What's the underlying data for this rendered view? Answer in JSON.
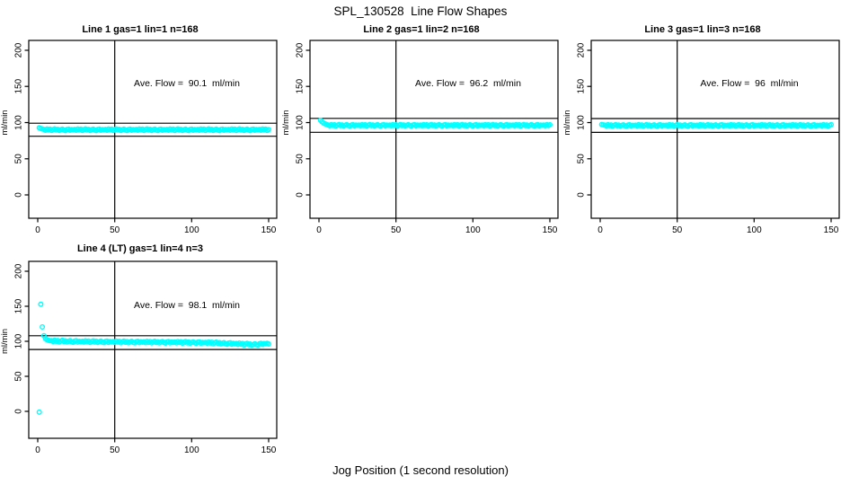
{
  "page": {
    "title": "SPL_130528  Line Flow Shapes",
    "x_axis_label": "Jog Position (1 second resolution)"
  },
  "colors": {
    "points": "#00FFFF",
    "axis": "#000000",
    "background": "#FFFFFF",
    "text": "#000000"
  },
  "chart_data": {
    "type": "scatter",
    "marker": "open-circle",
    "xlabel": "Jog Position (1 second resolution)",
    "ylabel": "ml/min",
    "x_ticks": [
      0,
      50,
      100,
      150
    ],
    "y_ticks": [
      0,
      50,
      100,
      150,
      200
    ],
    "xlim": [
      -6,
      156
    ],
    "ylim": [
      -35,
      215
    ],
    "grid": false,
    "legend": "none",
    "plots": [
      {
        "title": "Line 1 gas=1 lin=1 n=168",
        "annotation": "Ave. Flow =  90.1  ml/min",
        "avg_flow": 90.1,
        "units": "ml/min",
        "n": 168,
        "gas": 1,
        "lin": 1,
        "ref_line_upper": 99.1,
        "ref_line_lower": 81.1,
        "vline_x": 50,
        "x_start": 1,
        "x_step": 1,
        "y": [
          92.8,
          91.9,
          91.2,
          90.5,
          89.5,
          91.2,
          89.9,
          90.9,
          89.1,
          90.3,
          91.3,
          89.7,
          90.7,
          89.2,
          90.2,
          91.0,
          89.8,
          89.0,
          90.6,
          91.1,
          89.4,
          90.4,
          90.0,
          90.5,
          89.5,
          91.2,
          89.9,
          90.9,
          89.1,
          90.3,
          91.3,
          89.7,
          90.7,
          89.2,
          90.2,
          91.0,
          89.8,
          89.0,
          90.6,
          91.1,
          89.4,
          90.4,
          90.0,
          90.5,
          89.5,
          91.2,
          89.9,
          90.9,
          89.1,
          90.3,
          91.3,
          89.7,
          90.7,
          89.2,
          90.2,
          91.0,
          89.8,
          89.0,
          90.6,
          91.1,
          89.4,
          90.4,
          90.0,
          90.5,
          89.5,
          91.2,
          89.9,
          90.9,
          89.1,
          90.3,
          91.3,
          89.7,
          90.7,
          89.2,
          90.2,
          91.0,
          89.8,
          89.0,
          90.6,
          91.1,
          89.4,
          90.4,
          90.0,
          90.5,
          89.5,
          91.2,
          89.9,
          90.9,
          89.1,
          90.3,
          91.3,
          89.7,
          90.7,
          89.2,
          90.2,
          91.0,
          89.8,
          89.0,
          90.6,
          91.1,
          89.4,
          90.4,
          90.0,
          90.5,
          89.5,
          91.2,
          89.9,
          90.9,
          89.1,
          90.3,
          91.3,
          89.7,
          90.7,
          89.2,
          90.2,
          91.0,
          89.8,
          89.0,
          90.6,
          91.1,
          89.4,
          90.4,
          90.0,
          90.5,
          89.5,
          91.2,
          89.9,
          90.9,
          89.1,
          90.3,
          91.3,
          89.7,
          90.7,
          89.2,
          90.2,
          91.0,
          89.8,
          89.0,
          90.6,
          91.1,
          89.4,
          90.4,
          90.0,
          90.5,
          89.5,
          91.2,
          89.9,
          90.9,
          89.1,
          90.3
        ]
      },
      {
        "title": "Line 2 gas=1 lin=2 n=168",
        "annotation": "Ave. Flow =  96.2  ml/min",
        "avg_flow": 96.2,
        "units": "ml/min",
        "n": 168,
        "gas": 1,
        "lin": 2,
        "ref_line_upper": 105.8,
        "ref_line_lower": 86.6,
        "vline_x": 50,
        "x_start": 1,
        "x_step": 1,
        "y": [
          103.2,
          101.1,
          99.4,
          98.2,
          97.4,
          96.6,
          95.6,
          97.3,
          96.0,
          97.0,
          95.2,
          96.4,
          97.4,
          95.8,
          96.8,
          95.3,
          96.3,
          97.1,
          95.9,
          95.1,
          96.7,
          97.2,
          95.5,
          96.5,
          96.1,
          96.6,
          95.6,
          97.3,
          96.0,
          97.0,
          95.2,
          96.4,
          97.4,
          95.8,
          96.8,
          95.3,
          96.3,
          97.1,
          95.9,
          95.1,
          96.7,
          97.2,
          95.5,
          96.5,
          96.1,
          96.6,
          95.6,
          97.3,
          96.0,
          97.0,
          95.2,
          96.4,
          97.4,
          95.8,
          96.8,
          95.3,
          96.3,
          97.1,
          95.9,
          95.1,
          96.7,
          97.2,
          95.5,
          96.5,
          96.1,
          96.6,
          95.6,
          97.3,
          96.0,
          97.0,
          95.2,
          96.4,
          97.4,
          95.8,
          96.8,
          95.3,
          96.3,
          97.1,
          95.9,
          95.1,
          96.7,
          97.2,
          95.5,
          96.5,
          96.1,
          96.6,
          95.6,
          97.3,
          96.0,
          97.0,
          95.2,
          96.4,
          97.4,
          95.8,
          96.8,
          95.3,
          96.3,
          97.1,
          95.9,
          95.1,
          96.7,
          97.2,
          95.5,
          96.5,
          96.1,
          96.6,
          95.6,
          97.3,
          96.0,
          97.0,
          95.2,
          96.4,
          97.4,
          95.8,
          96.8,
          95.3,
          96.3,
          97.1,
          95.9,
          95.1,
          96.7,
          97.2,
          95.5,
          96.5,
          96.1,
          96.6,
          95.6,
          97.3,
          96.0,
          97.0,
          95.2,
          96.4,
          97.4,
          95.8,
          96.8,
          95.3,
          96.3,
          97.1,
          95.9,
          95.1,
          96.7,
          97.2,
          95.5,
          96.5,
          96.1,
          96.6,
          95.6,
          97.3,
          96.0,
          97.0
        ]
      },
      {
        "title": "Line 3 gas=1 lin=3 n=168",
        "annotation": "Ave. Flow =  96  ml/min",
        "avg_flow": 96,
        "units": "ml/min",
        "n": 168,
        "gas": 1,
        "lin": 3,
        "ref_line_upper": 105.6,
        "ref_line_lower": 86.4,
        "vline_x": 50,
        "x_start": 1,
        "x_step": 1,
        "y": [
          97.4,
          96.9,
          96.4,
          95.4,
          97.1,
          95.8,
          96.8,
          95.0,
          96.2,
          97.2,
          95.6,
          96.6,
          95.1,
          96.1,
          96.9,
          95.7,
          94.9,
          96.5,
          97.0,
          95.3,
          96.3,
          95.9,
          96.4,
          95.4,
          97.1,
          95.8,
          96.8,
          95.0,
          96.2,
          97.2,
          95.6,
          96.6,
          95.1,
          96.1,
          96.9,
          95.7,
          94.9,
          96.5,
          97.0,
          95.3,
          96.3,
          95.9,
          96.4,
          95.4,
          97.1,
          95.8,
          96.8,
          95.0,
          96.2,
          97.2,
          95.6,
          96.6,
          95.1,
          96.1,
          96.9,
          95.7,
          94.9,
          96.5,
          97.0,
          95.3,
          96.3,
          95.9,
          96.4,
          95.4,
          97.1,
          95.8,
          96.8,
          95.0,
          96.2,
          97.2,
          95.6,
          96.6,
          95.1,
          96.1,
          96.9,
          95.7,
          94.9,
          96.5,
          97.0,
          95.3,
          96.3,
          95.9,
          96.4,
          95.4,
          97.1,
          95.8,
          96.8,
          95.0,
          96.2,
          97.2,
          95.6,
          96.6,
          95.1,
          96.1,
          96.9,
          95.7,
          94.9,
          96.5,
          97.0,
          95.3,
          96.3,
          95.9,
          96.4,
          95.4,
          97.1,
          95.8,
          96.8,
          95.0,
          96.2,
          97.2,
          95.6,
          96.6,
          95.1,
          96.1,
          96.9,
          95.7,
          94.9,
          96.5,
          97.0,
          95.3,
          96.3,
          95.9,
          96.4,
          95.4,
          97.1,
          95.8,
          96.8,
          95.0,
          96.2,
          97.2,
          95.6,
          96.6,
          95.1,
          96.1,
          96.9,
          95.7,
          94.9,
          96.5,
          97.0,
          95.3,
          96.3,
          95.9,
          96.4,
          95.4,
          97.1,
          95.8,
          96.8,
          95.0,
          96.2,
          97.2
        ]
      },
      {
        "title": "Line 4 (LT) gas=1 lin=4 n=3",
        "annotation": "Ave. Flow =  98.1  ml/min",
        "avg_flow": 98.1,
        "units": "ml/min",
        "n": 3,
        "gas": 1,
        "lin": 4,
        "ref_line_upper": 107.9,
        "ref_line_lower": 88.3,
        "vline_x": 50,
        "x_start": 1,
        "x_step": 1,
        "y": [
          -1.2,
          153.0,
          120.5,
          108.0,
          104.0,
          102.3,
          101.4,
          100.8,
          100.9,
          99.7,
          101.5,
          100.0,
          101.1,
          99.1,
          100.4,
          101.4,
          99.6,
          100.7,
          99.0,
          100.0,
          100.9,
          99.4,
          98.6,
          100.4,
          100.8,
          98.9,
          100.0,
          99.4,
          100.0,
          98.8,
          100.7,
          99.2,
          100.4,
          98.3,
          99.7,
          100.7,
          98.9,
          100.1,
          98.4,
          99.4,
          100.3,
          98.9,
          98.1,
          99.9,
          100.4,
          98.4,
          99.6,
          99.0,
          99.7,
          98.5,
          100.4,
          98.8,
          100.0,
          98.0,
          99.4,
          100.4,
          98.6,
          99.7,
          98.0,
          99.1,
          100.0,
          98.6,
          97.8,
          99.5,
          100.0,
          98.1,
          99.3,
          98.7,
          99.4,
          98.1,
          100.0,
          98.5,
          99.7,
          97.7,
          99.1,
          100.0,
          98.2,
          99.4,
          97.7,
          98.8,
          99.7,
          98.2,
          97.4,
          99.2,
          99.7,
          97.8,
          99.0,
          98.3,
          99.0,
          97.8,
          99.7,
          98.2,
          99.3,
          97.3,
          98.7,
          99.7,
          97.8,
          99.0,
          97.3,
          98.4,
          99.2,
          97.8,
          97.0,
          98.8,
          99.2,
          97.3,
          98.5,
          97.9,
          98.5,
          97.3,
          99.1,
          97.5,
          98.7,
          96.6,
          97.9,
          98.8,
          96.9,
          98.1,
          96.3,
          97.3,
          98.1,
          96.6,
          95.8,
          97.5,
          97.9,
          95.9,
          97.0,
          96.3,
          96.9,
          95.6,
          97.4,
          95.8,
          96.9,
          94.8,
          96.1,
          97.0,
          95.1,
          96.2,
          94.4,
          95.4,
          96.5,
          95.2,
          94.6,
          96.6,
          97.2,
          95.5,
          96.8,
          96.4,
          97.2,
          96.1
        ]
      }
    ]
  }
}
